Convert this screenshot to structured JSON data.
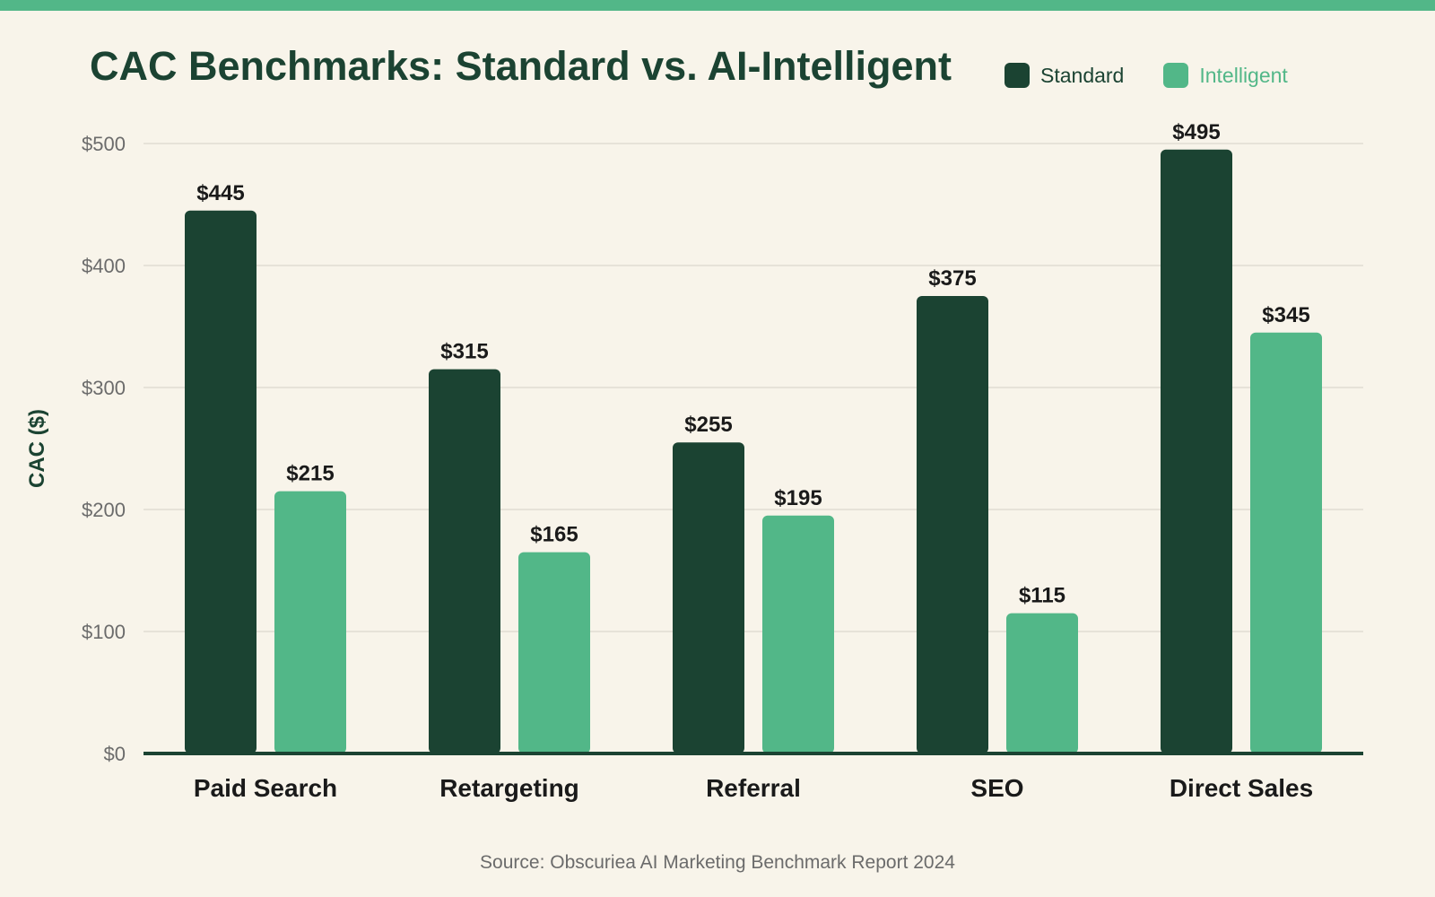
{
  "chart_data": {
    "type": "bar",
    "title": "CAC Benchmarks: Standard vs. AI-Intelligent",
    "ylabel": "CAC ($)",
    "xlabel": "",
    "categories": [
      "Paid Search",
      "Retargeting",
      "Referral",
      "SEO",
      "Direct Sales"
    ],
    "series": [
      {
        "name": "Standard",
        "values": [
          445,
          315,
          255,
          375,
          495
        ],
        "color": "#1b4332"
      },
      {
        "name": "Intelligent",
        "values": [
          215,
          165,
          195,
          115,
          345
        ],
        "color": "#52b788"
      }
    ],
    "ylim": [
      0,
      500
    ],
    "yticks": [
      0,
      100,
      200,
      300,
      400,
      500
    ],
    "ytick_labels": [
      "$0",
      "$100",
      "$200",
      "$300",
      "$400",
      "$500"
    ],
    "value_labels": [
      [
        "$445",
        "$315",
        "$255",
        "$375",
        "$495"
      ],
      [
        "$215",
        "$165",
        "$195",
        "$115",
        "$345"
      ]
    ],
    "grid": true,
    "legend_position": "top-right",
    "source": "Source: Obscuriea AI Marketing Benchmark Report 2024"
  },
  "colors": {
    "background": "#f8f4ea",
    "accent_band": "#52b788",
    "gridline": "#e6e2d8",
    "axis": "#1b4332",
    "tick_text": "#6b6b6b",
    "label_text": "#1a1a1a"
  }
}
